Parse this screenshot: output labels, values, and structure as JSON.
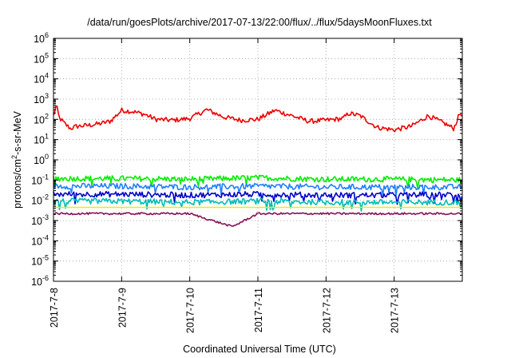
{
  "chart_data": {
    "type": "line",
    "title": "/data/run/goesPlots/archive/2017-07-13/22:00/flux/../flux/5daysMoonFluxes.txt",
    "xlabel": "Coordinated Universal Time (UTC)",
    "ylabel": {
      "pre": "protons/cm",
      "sup": "2",
      "post": "-s-sr-MeV"
    },
    "y_scale": "log",
    "ylim": [
      1e-06,
      1000000.0
    ],
    "y_ticks": [
      {
        "exp": "-6",
        "value": 1e-06
      },
      {
        "exp": "-5",
        "value": 1e-05
      },
      {
        "exp": "-4",
        "value": 0.0001
      },
      {
        "exp": "-3",
        "value": 0.001
      },
      {
        "exp": "-2",
        "value": 0.01
      },
      {
        "exp": "-1",
        "value": 0.1
      },
      {
        "exp": "0",
        "value": 1
      },
      {
        "exp": "1",
        "value": 10
      },
      {
        "exp": "2",
        "value": 100
      },
      {
        "exp": "3",
        "value": 1000
      },
      {
        "exp": "4",
        "value": 10000
      },
      {
        "exp": "5",
        "value": 100000
      },
      {
        "exp": "6",
        "value": 1000000
      }
    ],
    "y_tick_base": "10",
    "xlim": [
      "2017-07-08 00:00",
      "2017-07-14 00:00"
    ],
    "x_ticks": [
      "2017-7-8",
      "2017-7-9",
      "2017-7-10",
      "2017-7-11",
      "2017-7-12",
      "2017-7-13"
    ],
    "grid": true,
    "series": [
      {
        "color": "#ee0000",
        "x": [
          "2017-07-08 00:00",
          "2017-07-08 01:00",
          "2017-07-08 02:00",
          "2017-07-08 04:00",
          "2017-07-08 06:00",
          "2017-07-08 08:00",
          "2017-07-08 12:00",
          "2017-07-08 16:00",
          "2017-07-08 20:00",
          "2017-07-09 00:00",
          "2017-07-09 04:00",
          "2017-07-09 08:00",
          "2017-07-09 12:00",
          "2017-07-09 18:00",
          "2017-07-10 00:00",
          "2017-07-10 06:00",
          "2017-07-10 12:00",
          "2017-07-10 18:00",
          "2017-07-11 00:00",
          "2017-07-11 06:00",
          "2017-07-11 12:00",
          "2017-07-11 18:00",
          "2017-07-12 00:00",
          "2017-07-12 06:00",
          "2017-07-12 08:00",
          "2017-07-12 12:00",
          "2017-07-12 18:00",
          "2017-07-13 00:00",
          "2017-07-13 06:00",
          "2017-07-13 12:00",
          "2017-07-13 18:00",
          "2017-07-13 21:00",
          "2017-07-13 23:00"
        ],
        "y": [
          150,
          500,
          120,
          60,
          35,
          45,
          50,
          60,
          80,
          280,
          240,
          180,
          100,
          90,
          110,
          300,
          130,
          90,
          100,
          280,
          150,
          80,
          90,
          110,
          200,
          150,
          40,
          30,
          45,
          150,
          60,
          35,
          180
        ]
      },
      {
        "color": "#00ee00",
        "x": [
          "2017-07-08 00:00",
          "2017-07-09 00:00",
          "2017-07-10 00:00",
          "2017-07-11 00:00",
          "2017-07-12 00:00",
          "2017-07-13 00:00",
          "2017-07-14 00:00"
        ],
        "y": [
          0.12,
          0.12,
          0.11,
          0.13,
          0.11,
          0.11,
          0.1
        ]
      },
      {
        "color": "#1f7fff",
        "x": [
          "2017-07-08 00:00",
          "2017-07-09 00:00",
          "2017-07-10 00:00",
          "2017-07-11 00:00",
          "2017-07-12 00:00",
          "2017-07-13 00:00",
          "2017-07-14 00:00"
        ],
        "y": [
          0.05,
          0.05,
          0.045,
          0.05,
          0.045,
          0.045,
          0.045
        ]
      },
      {
        "color": "#0000cc",
        "x": [
          "2017-07-08 00:00",
          "2017-07-09 00:00",
          "2017-07-10 00:00",
          "2017-07-11 00:00",
          "2017-07-12 00:00",
          "2017-07-13 00:00",
          "2017-07-14 00:00"
        ],
        "y": [
          0.02,
          0.02,
          0.018,
          0.02,
          0.018,
          0.018,
          0.02
        ]
      },
      {
        "color": "#00bbbb",
        "x": [
          "2017-07-08 00:00",
          "2017-07-09 00:00",
          "2017-07-10 00:00",
          "2017-07-11 00:00",
          "2017-07-12 00:00",
          "2017-07-13 00:00",
          "2017-07-14 00:00"
        ],
        "y": [
          0.009,
          0.009,
          0.008,
          0.009,
          0.008,
          0.008,
          0.008
        ]
      },
      {
        "color": "#eeee00",
        "x": [
          "2017-07-08 00:00",
          "2017-07-14 00:00"
        ],
        "y": [
          0.0045,
          0.0045
        ]
      },
      {
        "color": "#881155",
        "x": [
          "2017-07-08 00:00",
          "2017-07-09 00:00",
          "2017-07-10 00:00",
          "2017-07-10 15:00",
          "2017-07-11 00:00",
          "2017-07-12 00:00",
          "2017-07-13 00:00",
          "2017-07-14 00:00"
        ],
        "y": [
          0.0022,
          0.0022,
          0.0022,
          0.0005,
          0.0022,
          0.0022,
          0.0022,
          0.0022
        ]
      }
    ]
  }
}
